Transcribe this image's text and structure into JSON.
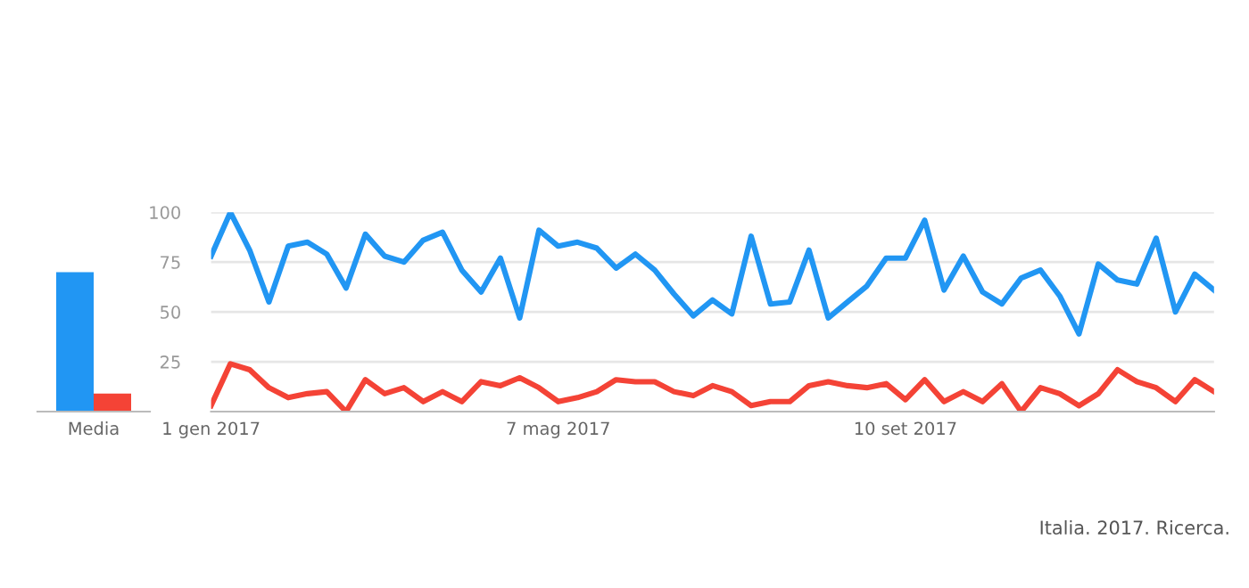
{
  "chart_data": [
    {
      "type": "bar",
      "categories": [
        "Media"
      ],
      "series": [
        {
          "color": "#2196f3",
          "values": [
            70
          ]
        },
        {
          "color": "#f44336",
          "values": [
            9
          ]
        }
      ],
      "ylim": [
        0,
        100
      ],
      "tick_labels": "x",
      "grid": false,
      "legend": false
    },
    {
      "type": "line",
      "x": [
        "2017-01-01",
        "2017-01-08",
        "2017-01-15",
        "2017-01-22",
        "2017-01-29",
        "2017-02-05",
        "2017-02-12",
        "2017-02-19",
        "2017-02-26",
        "2017-03-05",
        "2017-03-12",
        "2017-03-19",
        "2017-03-26",
        "2017-04-02",
        "2017-04-09",
        "2017-04-16",
        "2017-04-23",
        "2017-04-30",
        "2017-05-07",
        "2017-05-14",
        "2017-05-21",
        "2017-05-28",
        "2017-06-04",
        "2017-06-11",
        "2017-06-18",
        "2017-06-25",
        "2017-07-02",
        "2017-07-09",
        "2017-07-16",
        "2017-07-23",
        "2017-07-30",
        "2017-08-06",
        "2017-08-13",
        "2017-08-20",
        "2017-08-27",
        "2017-09-03",
        "2017-09-10",
        "2017-09-17",
        "2017-09-24",
        "2017-10-01",
        "2017-10-08",
        "2017-10-15",
        "2017-10-22",
        "2017-10-29",
        "2017-11-05",
        "2017-11-12",
        "2017-11-19",
        "2017-11-26",
        "2017-12-03",
        "2017-12-10",
        "2017-12-17",
        "2017-12-24",
        "2017-12-31"
      ],
      "series": [
        {
          "color": "#2196f3",
          "values": [
            78,
            100,
            81,
            55,
            83,
            85,
            79,
            62,
            89,
            78,
            75,
            86,
            90,
            71,
            60,
            77,
            47,
            91,
            83,
            85,
            82,
            72,
            79,
            71,
            59,
            48,
            56,
            49,
            88,
            54,
            55,
            81,
            47,
            55,
            63,
            77,
            77,
            96,
            61,
            78,
            60,
            54,
            67,
            71,
            58,
            39,
            74,
            66,
            64,
            87,
            50,
            69,
            61
          ]
        },
        {
          "color": "#f44336",
          "values": [
            3,
            24,
            21,
            12,
            7,
            9,
            10,
            0,
            16,
            9,
            12,
            5,
            10,
            5,
            15,
            13,
            17,
            12,
            5,
            7,
            10,
            16,
            15,
            15,
            10,
            8,
            13,
            10,
            3,
            5,
            5,
            13,
            15,
            13,
            12,
            14,
            6,
            16,
            5,
            10,
            5,
            14,
            0,
            12,
            9,
            3,
            9,
            21,
            15,
            12,
            5,
            16,
            10
          ]
        }
      ],
      "xlim": [
        "2017-01-01",
        "2017-12-31"
      ],
      "xticks": [
        {
          "value": "2017-01-01",
          "label": "1 gen 2017"
        },
        {
          "value": "2017-05-07",
          "label": "7 mag 2017"
        },
        {
          "value": "2017-09-10",
          "label": "10 set 2017"
        }
      ],
      "ylim": [
        0,
        100
      ],
      "yticks": [
        25,
        50,
        75,
        100
      ],
      "grid": "y",
      "legend": false,
      "marker": "none",
      "line_style": "solid",
      "annotations": [
        "Italia. 2017. Ricerca."
      ]
    }
  ]
}
